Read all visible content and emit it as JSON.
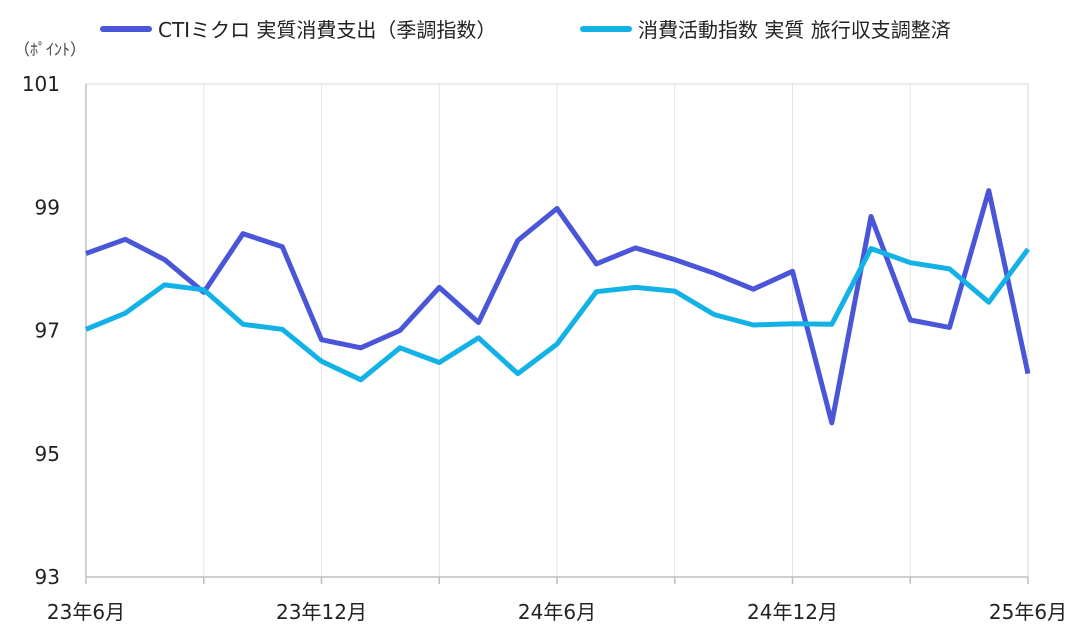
{
  "chart_data": {
    "type": "line",
    "unit_label": "（ﾎﾟｲﾝﾄ）",
    "x_tick_labels": [
      "23年6月",
      "23年12月",
      "24年6月",
      "24年12月",
      "25年6月"
    ],
    "x_tick_indices": [
      0,
      6,
      12,
      18,
      24
    ],
    "ylim": [
      93,
      101
    ],
    "yticks": [
      93,
      95,
      97,
      99,
      101
    ],
    "grid": "vertical",
    "legend": "top",
    "series": [
      {
        "name": "CTIミクロ 実質消費支出（季調指数）",
        "color": "#4a55d8",
        "values": [
          98.25,
          98.48,
          98.15,
          97.62,
          98.57,
          98.36,
          96.85,
          96.72,
          97.0,
          97.7,
          97.13,
          98.46,
          98.98,
          98.08,
          98.34,
          98.15,
          97.93,
          97.67,
          97.96,
          95.5,
          98.85,
          97.17,
          97.05,
          99.27,
          96.3
        ]
      },
      {
        "name": "消費活動指数 実質 旅行収支調整済",
        "color": "#12b2e6",
        "values": [
          97.02,
          97.28,
          97.74,
          97.66,
          97.1,
          97.02,
          96.5,
          96.2,
          96.72,
          96.48,
          96.88,
          96.3,
          96.78,
          97.63,
          97.7,
          97.64,
          97.26,
          97.09,
          97.11,
          97.1,
          98.33,
          98.1,
          98.0,
          97.46,
          98.32
        ]
      }
    ]
  }
}
